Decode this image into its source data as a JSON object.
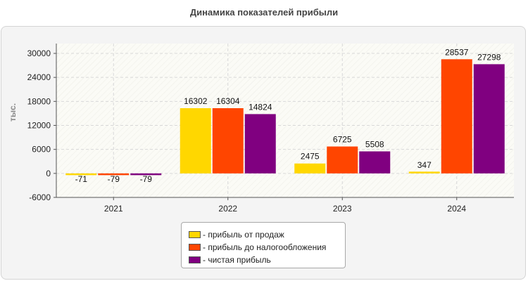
{
  "title": "Динамика показателей прибыли",
  "chart_data": {
    "type": "bar",
    "title": "Динамика показателей прибыли",
    "xlabel": "",
    "ylabel": "тыс.",
    "categories": [
      "2021",
      "2022",
      "2023",
      "2024"
    ],
    "ylim": [
      -6000,
      30000
    ],
    "yticks": [
      -6000,
      0,
      6000,
      12000,
      18000,
      24000,
      30000
    ],
    "grid": true,
    "legend_position": "bottom",
    "series": [
      {
        "name": "- прибыль от продаж",
        "color": "#ffd700",
        "values": [
          -71,
          16302,
          2475,
          347
        ]
      },
      {
        "name": "- прибыль до налогообложения",
        "color": "#ff4500",
        "values": [
          -79,
          16304,
          6725,
          28537
        ]
      },
      {
        "name": "- чистая прибыль",
        "color": "#800080",
        "values": [
          -79,
          14824,
          5508,
          27298
        ]
      }
    ]
  }
}
